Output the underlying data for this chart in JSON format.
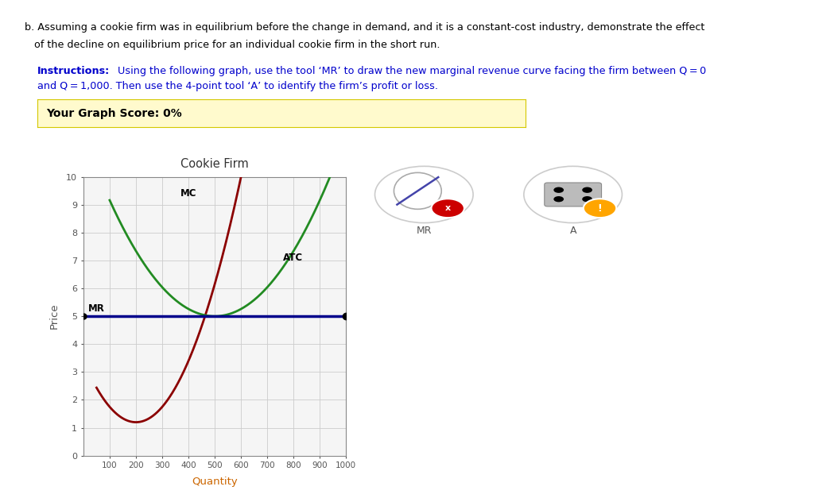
{
  "title": "Cookie Firm",
  "xlabel": "Quantity",
  "ylabel": "Price",
  "xlim": [
    0,
    1000
  ],
  "ylim": [
    0,
    10
  ],
  "xticks": [
    100,
    200,
    300,
    400,
    500,
    600,
    700,
    800,
    900,
    1000
  ],
  "yticks": [
    0,
    1,
    2,
    3,
    4,
    5,
    6,
    7,
    8,
    9,
    10
  ],
  "mr_level": 5,
  "mr_color": "#00008B",
  "mc_color": "#8B0000",
  "atc_color": "#228B22",
  "background_color": "#ffffff",
  "grid_color": "#cccccc",
  "score_text": "Your Graph Score: 0%",
  "score_bg": "#FFFACD",
  "header_line1": "b. Assuming a cookie firm was in equilibrium before the change in demand, and it is a constant-cost industry, demonstrate the effect",
  "header_line2": "   of the decline on equilibrium price for an individual cookie firm in the short run.",
  "instr_label": "Instructions:",
  "instr_body": " Using the following graph, use the tool ‘MR’ to draw the new marginal revenue curve facing the firm between Q = 0",
  "instr_body2": "and Q = 1,000. Then use the 4-point tool ‘A’ to identify the firm’s profit or loss.",
  "mr_icon_label": "MR",
  "a_icon_label": "A"
}
